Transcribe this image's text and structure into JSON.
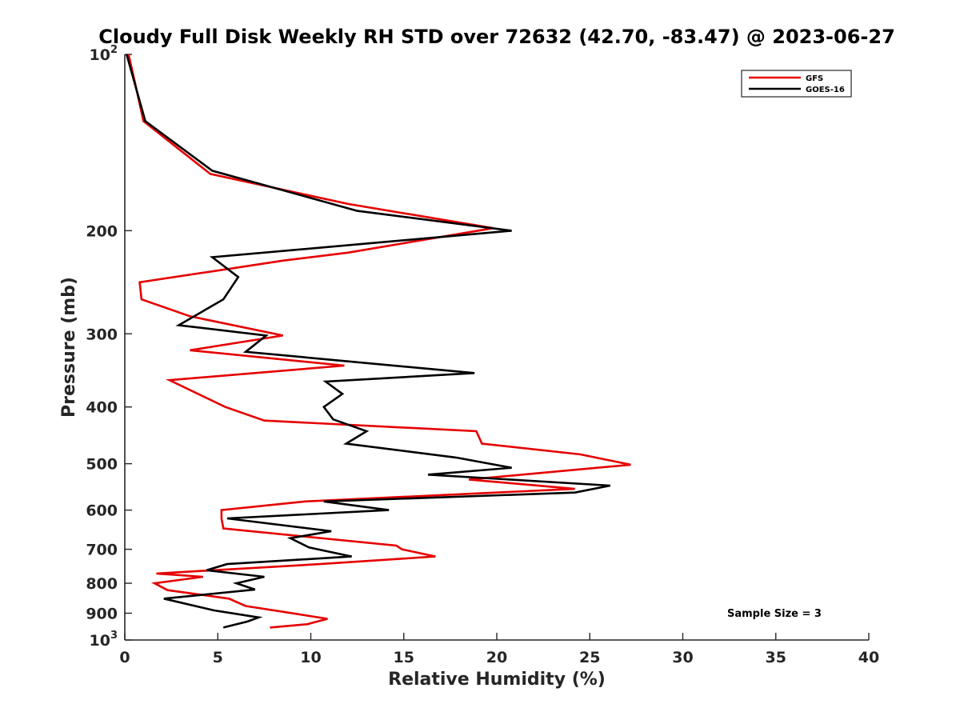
{
  "chart_data": {
    "type": "line",
    "title": "Cloudy Full Disk Weekly RH STD over 72632 (42.70, -83.47) @ 2023-06-27",
    "xlabel": "Relative Humidity (%)",
    "ylabel": "Pressure (mb)",
    "xlim": [
      0,
      40
    ],
    "ylim": [
      100,
      1000
    ],
    "y_scale": "log",
    "y_reversed": true,
    "grid": false,
    "legend_position": "top-right",
    "x_ticks": [
      "0",
      "5",
      "10",
      "15",
      "20",
      "25",
      "30",
      "35",
      "40"
    ],
    "y_ticks": [
      {
        "value": 100,
        "base": "10",
        "exp": "2"
      },
      {
        "value": 200,
        "label": "200"
      },
      {
        "value": 300,
        "label": "300"
      },
      {
        "value": 400,
        "label": "400"
      },
      {
        "value": 500,
        "label": "500"
      },
      {
        "value": 600,
        "label": "600"
      },
      {
        "value": 700,
        "label": "700"
      },
      {
        "value": 800,
        "label": "800"
      },
      {
        "value": 900,
        "label": "900"
      },
      {
        "value": 1000,
        "base": "10",
        "exp": "3"
      }
    ],
    "annotation": "Sample Size = 3",
    "series": [
      {
        "name": "GFS",
        "color": "#e60000",
        "points": [
          [
            0.2,
            100
          ],
          [
            0.5,
            110
          ],
          [
            1.0,
            130
          ],
          [
            4.6,
            160
          ],
          [
            12.0,
            180
          ],
          [
            19.8,
            198
          ],
          [
            12.0,
            218
          ],
          [
            8.5,
            225
          ],
          [
            0.8,
            245
          ],
          [
            0.9,
            262
          ],
          [
            3.5,
            280
          ],
          [
            8.5,
            302
          ],
          [
            3.5,
            320
          ],
          [
            11.8,
            340
          ],
          [
            2.4,
            360
          ],
          [
            5.4,
            400
          ],
          [
            7.5,
            422
          ],
          [
            18.9,
            440
          ],
          [
            19.2,
            462
          ],
          [
            24.5,
            482
          ],
          [
            27.2,
            502
          ],
          [
            18.5,
            532
          ],
          [
            24.2,
            552
          ],
          [
            9.7,
            580
          ],
          [
            5.2,
            600
          ],
          [
            5.2,
            620
          ],
          [
            5.3,
            645
          ],
          [
            14.6,
            690
          ],
          [
            14.9,
            700
          ],
          [
            16.7,
            720
          ],
          [
            10.5,
            742
          ],
          [
            1.7,
            770
          ],
          [
            4.2,
            780
          ],
          [
            1.6,
            800
          ],
          [
            2.3,
            822
          ],
          [
            5.6,
            850
          ],
          [
            6.5,
            875
          ],
          [
            8.5,
            895
          ],
          [
            10.9,
            920
          ],
          [
            9.8,
            940
          ],
          [
            7.8,
            952
          ]
        ]
      },
      {
        "name": "GOES-16",
        "color": "#000000",
        "points": [
          [
            0.1,
            100
          ],
          [
            1.1,
            130
          ],
          [
            4.7,
            158
          ],
          [
            12.5,
            185
          ],
          [
            20.8,
            200
          ],
          [
            4.7,
            222
          ],
          [
            6.1,
            240
          ],
          [
            5.3,
            262
          ],
          [
            2.9,
            290
          ],
          [
            7.6,
            302
          ],
          [
            6.5,
            322
          ],
          [
            18.8,
            350
          ],
          [
            10.8,
            362
          ],
          [
            11.7,
            380
          ],
          [
            10.7,
            400
          ],
          [
            11.2,
            420
          ],
          [
            13.0,
            440
          ],
          [
            11.9,
            462
          ],
          [
            17.8,
            488
          ],
          [
            20.8,
            508
          ],
          [
            16.3,
            522
          ],
          [
            26.1,
            545
          ],
          [
            24.2,
            560
          ],
          [
            10.7,
            580
          ],
          [
            14.2,
            600
          ],
          [
            5.5,
            620
          ],
          [
            11.1,
            652
          ],
          [
            8.9,
            670
          ],
          [
            9.9,
            695
          ],
          [
            12.2,
            720
          ],
          [
            5.5,
            742
          ],
          [
            4.4,
            760
          ],
          [
            7.5,
            780
          ],
          [
            6.0,
            800
          ],
          [
            7.0,
            820
          ],
          [
            2.1,
            850
          ],
          [
            4.8,
            890
          ],
          [
            7.2,
            915
          ],
          [
            6.6,
            930
          ],
          [
            5.3,
            952
          ]
        ]
      }
    ]
  }
}
